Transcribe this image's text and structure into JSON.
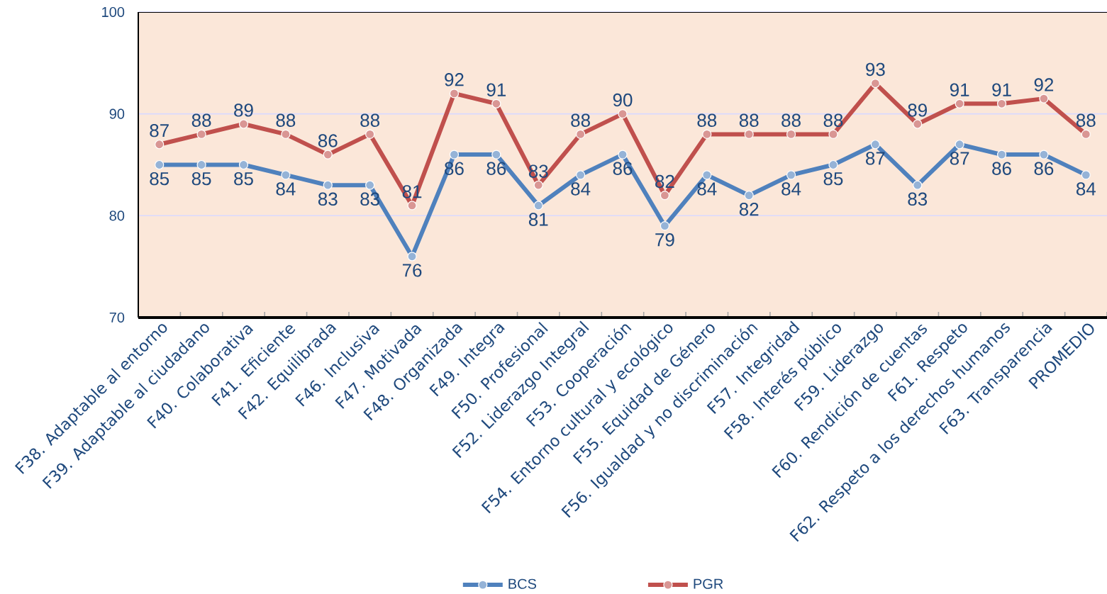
{
  "chart_data": {
    "type": "line",
    "categories": [
      "F38. Adaptable al entorno",
      "F39. Adaptable al ciudadano",
      "F40. Colaborativa",
      "F41. Eficiente",
      "F42. Equilibrada",
      "F46. Inclusiva",
      "F47. Motivada",
      "F48. Organizada",
      "F49. Integra",
      "F50. Profesional",
      "F52. Liderazgo Integral",
      "F53. Cooperación",
      "F54. Entorno cultural y ecológico",
      "F55. Equidad de Género",
      "F56. Igualdad y no discriminación",
      "F57. Integridad",
      "F58. Interés público",
      "F59. Liderazgo",
      "F60. Rendición de cuentas",
      "F61. Respeto",
      "F62. Respeto a los derechos humanos",
      "F63. Transparencia",
      "PROMEDIO"
    ],
    "series": [
      {
        "name": "BCS",
        "color": "#4f81bd",
        "values": [
          85,
          85,
          85,
          84,
          83,
          83,
          76,
          86,
          86,
          81,
          84,
          86,
          79,
          84,
          82,
          84,
          85,
          87,
          83,
          87,
          86,
          86,
          84
        ],
        "value_labels": [
          "85",
          "85",
          "85",
          "84",
          "83",
          "83",
          "76",
          "86",
          "86",
          "81",
          "84",
          "86",
          "79",
          "84",
          "82",
          "84",
          "85",
          "87",
          "83",
          "87",
          "86",
          "86",
          "84"
        ]
      },
      {
        "name": "PGR",
        "color": "#c0504d",
        "values": [
          87,
          88,
          89,
          88,
          86,
          88,
          81,
          92,
          91,
          83,
          88,
          90,
          82,
          88,
          88,
          88,
          88,
          93,
          89,
          91,
          91,
          91.5,
          88
        ],
        "value_labels": [
          "87",
          "88",
          "89",
          "88",
          "86",
          "88",
          "81",
          "92",
          "91",
          "83",
          "88",
          "90",
          "82",
          "88",
          "88",
          "88",
          "88",
          "93",
          "89",
          "91",
          "91",
          "92",
          "88"
        ]
      }
    ],
    "ylim": [
      70,
      100
    ],
    "yticks": [
      70,
      80,
      90,
      100
    ],
    "grid": "y",
    "legend": "bottom",
    "marker": "circle",
    "line_style": "solid"
  }
}
